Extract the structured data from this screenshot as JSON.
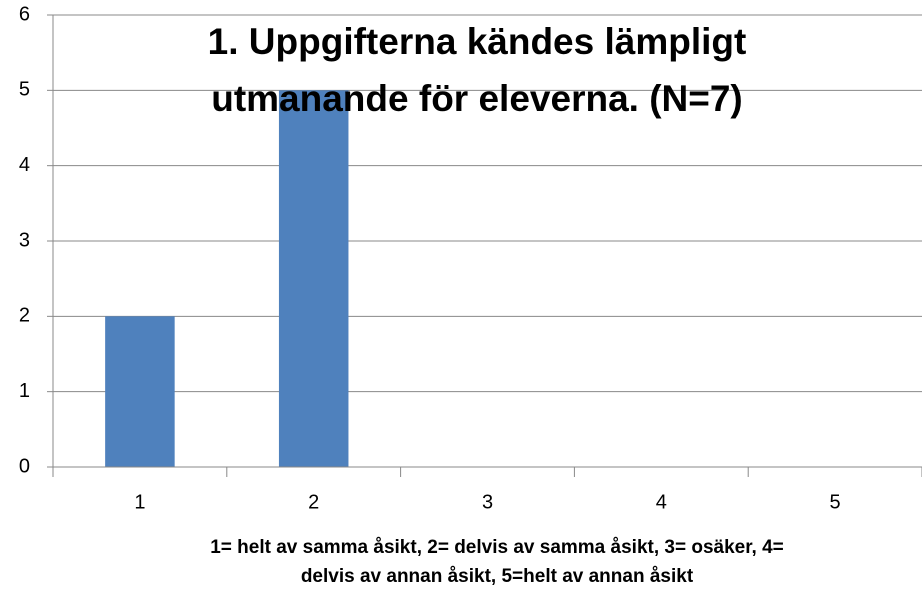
{
  "chart_data": {
    "type": "bar",
    "title": [
      "1. Uppgifterna kändes lämpligt",
      "utmanande för eleverna. (N=7)"
    ],
    "x_label": [
      "1= helt av samma åsikt, 2= delvis av samma åsikt, 3= osäker, 4=",
      "delvis av annan åsikt, 5=helt av annan åsikt"
    ],
    "categories": [
      "1",
      "2",
      "3",
      "4",
      "5"
    ],
    "values": [
      2,
      5,
      0,
      0,
      0
    ],
    "color": "#4f81bd",
    "ylim": [
      0,
      6
    ],
    "yticks": [
      0,
      1,
      2,
      3,
      4,
      5,
      6
    ],
    "grid": true
  }
}
